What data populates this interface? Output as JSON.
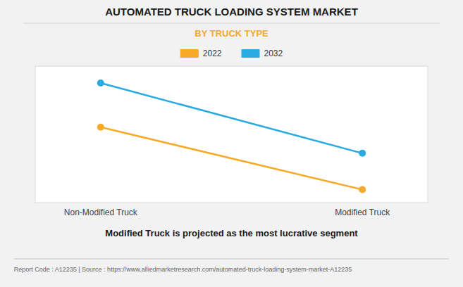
{
  "chart_data": {
    "type": "line",
    "title": "AUTOMATED TRUCK LOADING SYSTEM MARKET",
    "subtitle": "BY TRUCK TYPE",
    "categories": [
      "Non-Modified Truck",
      "Modified Truck"
    ],
    "series": [
      {
        "name": "2022",
        "color": "#f7a928",
        "values": [
          0.58,
          0.1
        ]
      },
      {
        "name": "2032",
        "color": "#29abe2",
        "values": [
          0.92,
          0.38
        ]
      }
    ],
    "ylim": [
      0.0,
      1.05
    ],
    "yticks": [],
    "grid": false,
    "tick_labels": "x",
    "legend": "top",
    "marker": "circle",
    "annotations": [
      "Modified Truck is projected as the most lucrative segment",
      "Report Code : A12235  |  Source : https://www.alliedmarketresearch.com/automated-truck-loading-system-market-A12235"
    ]
  }
}
